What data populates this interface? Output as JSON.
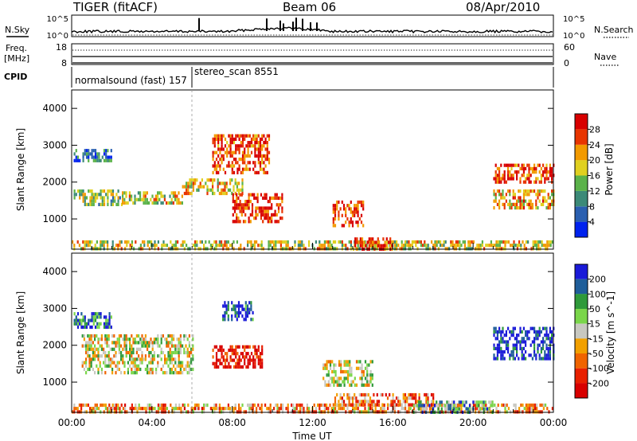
{
  "header": {
    "station": "TIGER (fitACF)",
    "beam": "Beam 06",
    "date": "08/Apr/2010"
  },
  "status_panels": {
    "nsky_label": "N.Sky",
    "nsky_left_top": "10^5",
    "nsky_left_bottom": "10^0",
    "nsky_right_top": "10^5",
    "nsky_right_bottom": "10^0",
    "nsearch_label": "N.Search",
    "freq_label": "Freq.",
    "freq_unit": "[MHz]",
    "freq_left_top": "18",
    "freq_left_bottom": "8",
    "nave_right_top": "60",
    "nave_right_bottom": "0",
    "nave_label": "Nave",
    "cpid_label": "CPID",
    "cpid_segments": [
      {
        "name": "normalsound (fast) 157",
        "start_hour": 0
      },
      {
        "name": "stereo_scan 8551",
        "start_hour": 6
      }
    ]
  },
  "chart_data": [
    {
      "type": "heatmap",
      "panel": "power",
      "ylabel": "Slant Range [km]",
      "ylim": [
        180,
        4500
      ],
      "yticks": [
        1000,
        2000,
        3000,
        4000
      ],
      "xlim": [
        "00:00",
        "24:00"
      ],
      "colorbar": {
        "label": "Power [dB]",
        "ticks": [
          4,
          8,
          12,
          16,
          20,
          24,
          28
        ],
        "colors": [
          "#0022ee",
          "#2a5fb0",
          "#3c8a78",
          "#5bb24a",
          "#e0d020",
          "#f29a00",
          "#e83500",
          "#d80000"
        ]
      },
      "echo_regions": [
        {
          "t0": 0.0,
          "t1": 24.0,
          "r0": 200,
          "r1": 420,
          "level": 0.55
        },
        {
          "t0": 0.1,
          "t1": 2.0,
          "r0": 2600,
          "r1": 2900,
          "level": 0.25
        },
        {
          "t0": 0.1,
          "t1": 2.5,
          "r0": 1400,
          "r1": 1800,
          "level": 0.45
        },
        {
          "t0": 2.5,
          "t1": 5.5,
          "r0": 1450,
          "r1": 1750,
          "level": 0.55
        },
        {
          "t0": 5.5,
          "t1": 8.5,
          "r0": 1700,
          "r1": 2100,
          "level": 0.6
        },
        {
          "t0": 7.0,
          "t1": 9.8,
          "r0": 2300,
          "r1": 3300,
          "level": 0.85
        },
        {
          "t0": 8.0,
          "t1": 10.5,
          "r0": 900,
          "r1": 1700,
          "level": 0.9
        },
        {
          "t0": 13.0,
          "t1": 14.5,
          "r0": 800,
          "r1": 1500,
          "level": 0.85
        },
        {
          "t0": 14.0,
          "t1": 16.0,
          "r0": 200,
          "r1": 500,
          "level": 0.85
        },
        {
          "t0": 21.0,
          "t1": 24.0,
          "r0": 2000,
          "r1": 2500,
          "level": 0.85
        },
        {
          "t0": 21.0,
          "t1": 24.0,
          "r0": 1300,
          "r1": 1800,
          "level": 0.65
        }
      ]
    },
    {
      "type": "heatmap",
      "panel": "velocity",
      "ylabel": "Slant Range [km]",
      "ylim": [
        180,
        4500
      ],
      "yticks": [
        1000,
        2000,
        3000,
        4000
      ],
      "xlim": [
        "00:00",
        "24:00"
      ],
      "xticks": [
        "00:00",
        "04:00",
        "08:00",
        "12:00",
        "16:00",
        "20:00",
        "00:00"
      ],
      "xlabel": "Time UT",
      "colorbar": {
        "label": "Velocity [m s^-1]",
        "ticks": [
          200,
          100,
          50,
          15,
          -15,
          -50,
          -100,
          -200
        ],
        "colors": [
          "#1a1ad8",
          "#1f5e9a",
          "#2f9a3a",
          "#7ad64a",
          "#c8c8c0",
          "#f2a000",
          "#f06400",
          "#e82000",
          "#d80000"
        ]
      },
      "echo_regions": [
        {
          "t0": 0.0,
          "t1": 24.0,
          "r0": 200,
          "r1": 420,
          "level": 0.35
        },
        {
          "t0": 0.1,
          "t1": 2.0,
          "r0": 2500,
          "r1": 2900,
          "level": 0.8
        },
        {
          "t0": 0.5,
          "t1": 6.0,
          "r0": 1300,
          "r1": 2300,
          "level": 0.5
        },
        {
          "t0": 7.0,
          "t1": 9.5,
          "r0": 1400,
          "r1": 2000,
          "level": 0.08
        },
        {
          "t0": 7.5,
          "t1": 9.0,
          "r0": 2700,
          "r1": 3200,
          "level": 0.9
        },
        {
          "t0": 12.5,
          "t1": 15.0,
          "r0": 900,
          "r1": 1600,
          "level": 0.5
        },
        {
          "t0": 13.0,
          "t1": 18.0,
          "r0": 400,
          "r1": 700,
          "level": 0.3
        },
        {
          "t0": 17.0,
          "t1": 21.0,
          "r0": 200,
          "r1": 500,
          "level": 0.7
        },
        {
          "t0": 21.0,
          "t1": 24.0,
          "r0": 1600,
          "r1": 2500,
          "level": 0.95
        }
      ]
    }
  ]
}
